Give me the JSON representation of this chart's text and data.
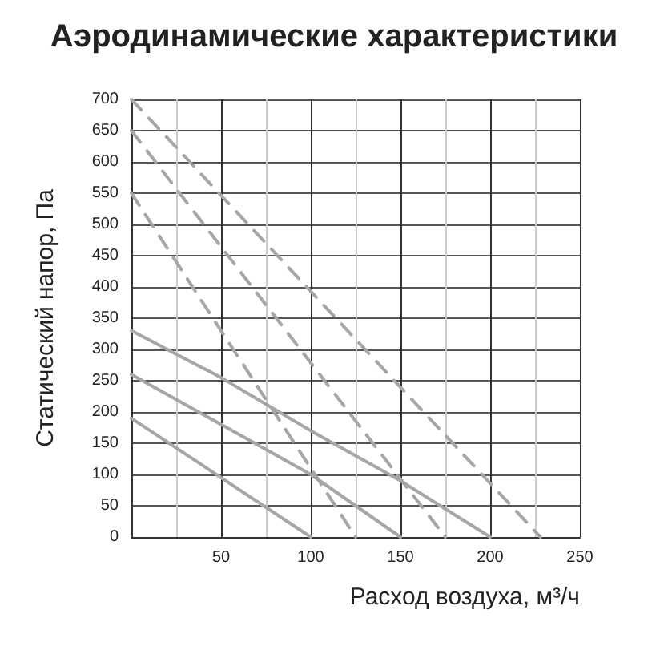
{
  "chart_data": {
    "type": "line",
    "title": "Аэродинамические характеристики",
    "xlabel": "Расход воздуха, м³/ч",
    "ylabel": "Статический напор, Па",
    "xlim": [
      0,
      250
    ],
    "xticks": [
      50,
      100,
      150,
      200,
      250
    ],
    "ylim": [
      0,
      700
    ],
    "yticks": [
      0,
      50,
      100,
      150,
      200,
      250,
      300,
      350,
      400,
      450,
      500,
      550,
      600,
      650,
      700
    ],
    "grid": true,
    "marker": "none",
    "series": [
      {
        "color": "#a6a6a6",
        "line_style": "solid",
        "x": [
          0,
          100
        ],
        "values": [
          190,
          0
        ]
      },
      {
        "color": "#a6a6a6",
        "line_style": "solid",
        "x": [
          0,
          50,
          100,
          150
        ],
        "values": [
          260,
          180,
          100,
          0
        ]
      },
      {
        "color": "#a6a6a6",
        "line_style": "solid",
        "x": [
          0,
          50,
          100,
          150,
          200
        ],
        "values": [
          330,
          255,
          170,
          90,
          0
        ]
      },
      {
        "color": "#a6a6a6",
        "line_style": "dashed",
        "x": [
          0,
          125
        ],
        "values": [
          550,
          0
        ]
      },
      {
        "color": "#a6a6a6",
        "line_style": "dashed",
        "x": [
          0,
          175
        ],
        "values": [
          650,
          0
        ]
      },
      {
        "color": "#a6a6a6",
        "line_style": "dashed",
        "x": [
          0,
          228
        ],
        "values": [
          700,
          0
        ]
      }
    ]
  }
}
